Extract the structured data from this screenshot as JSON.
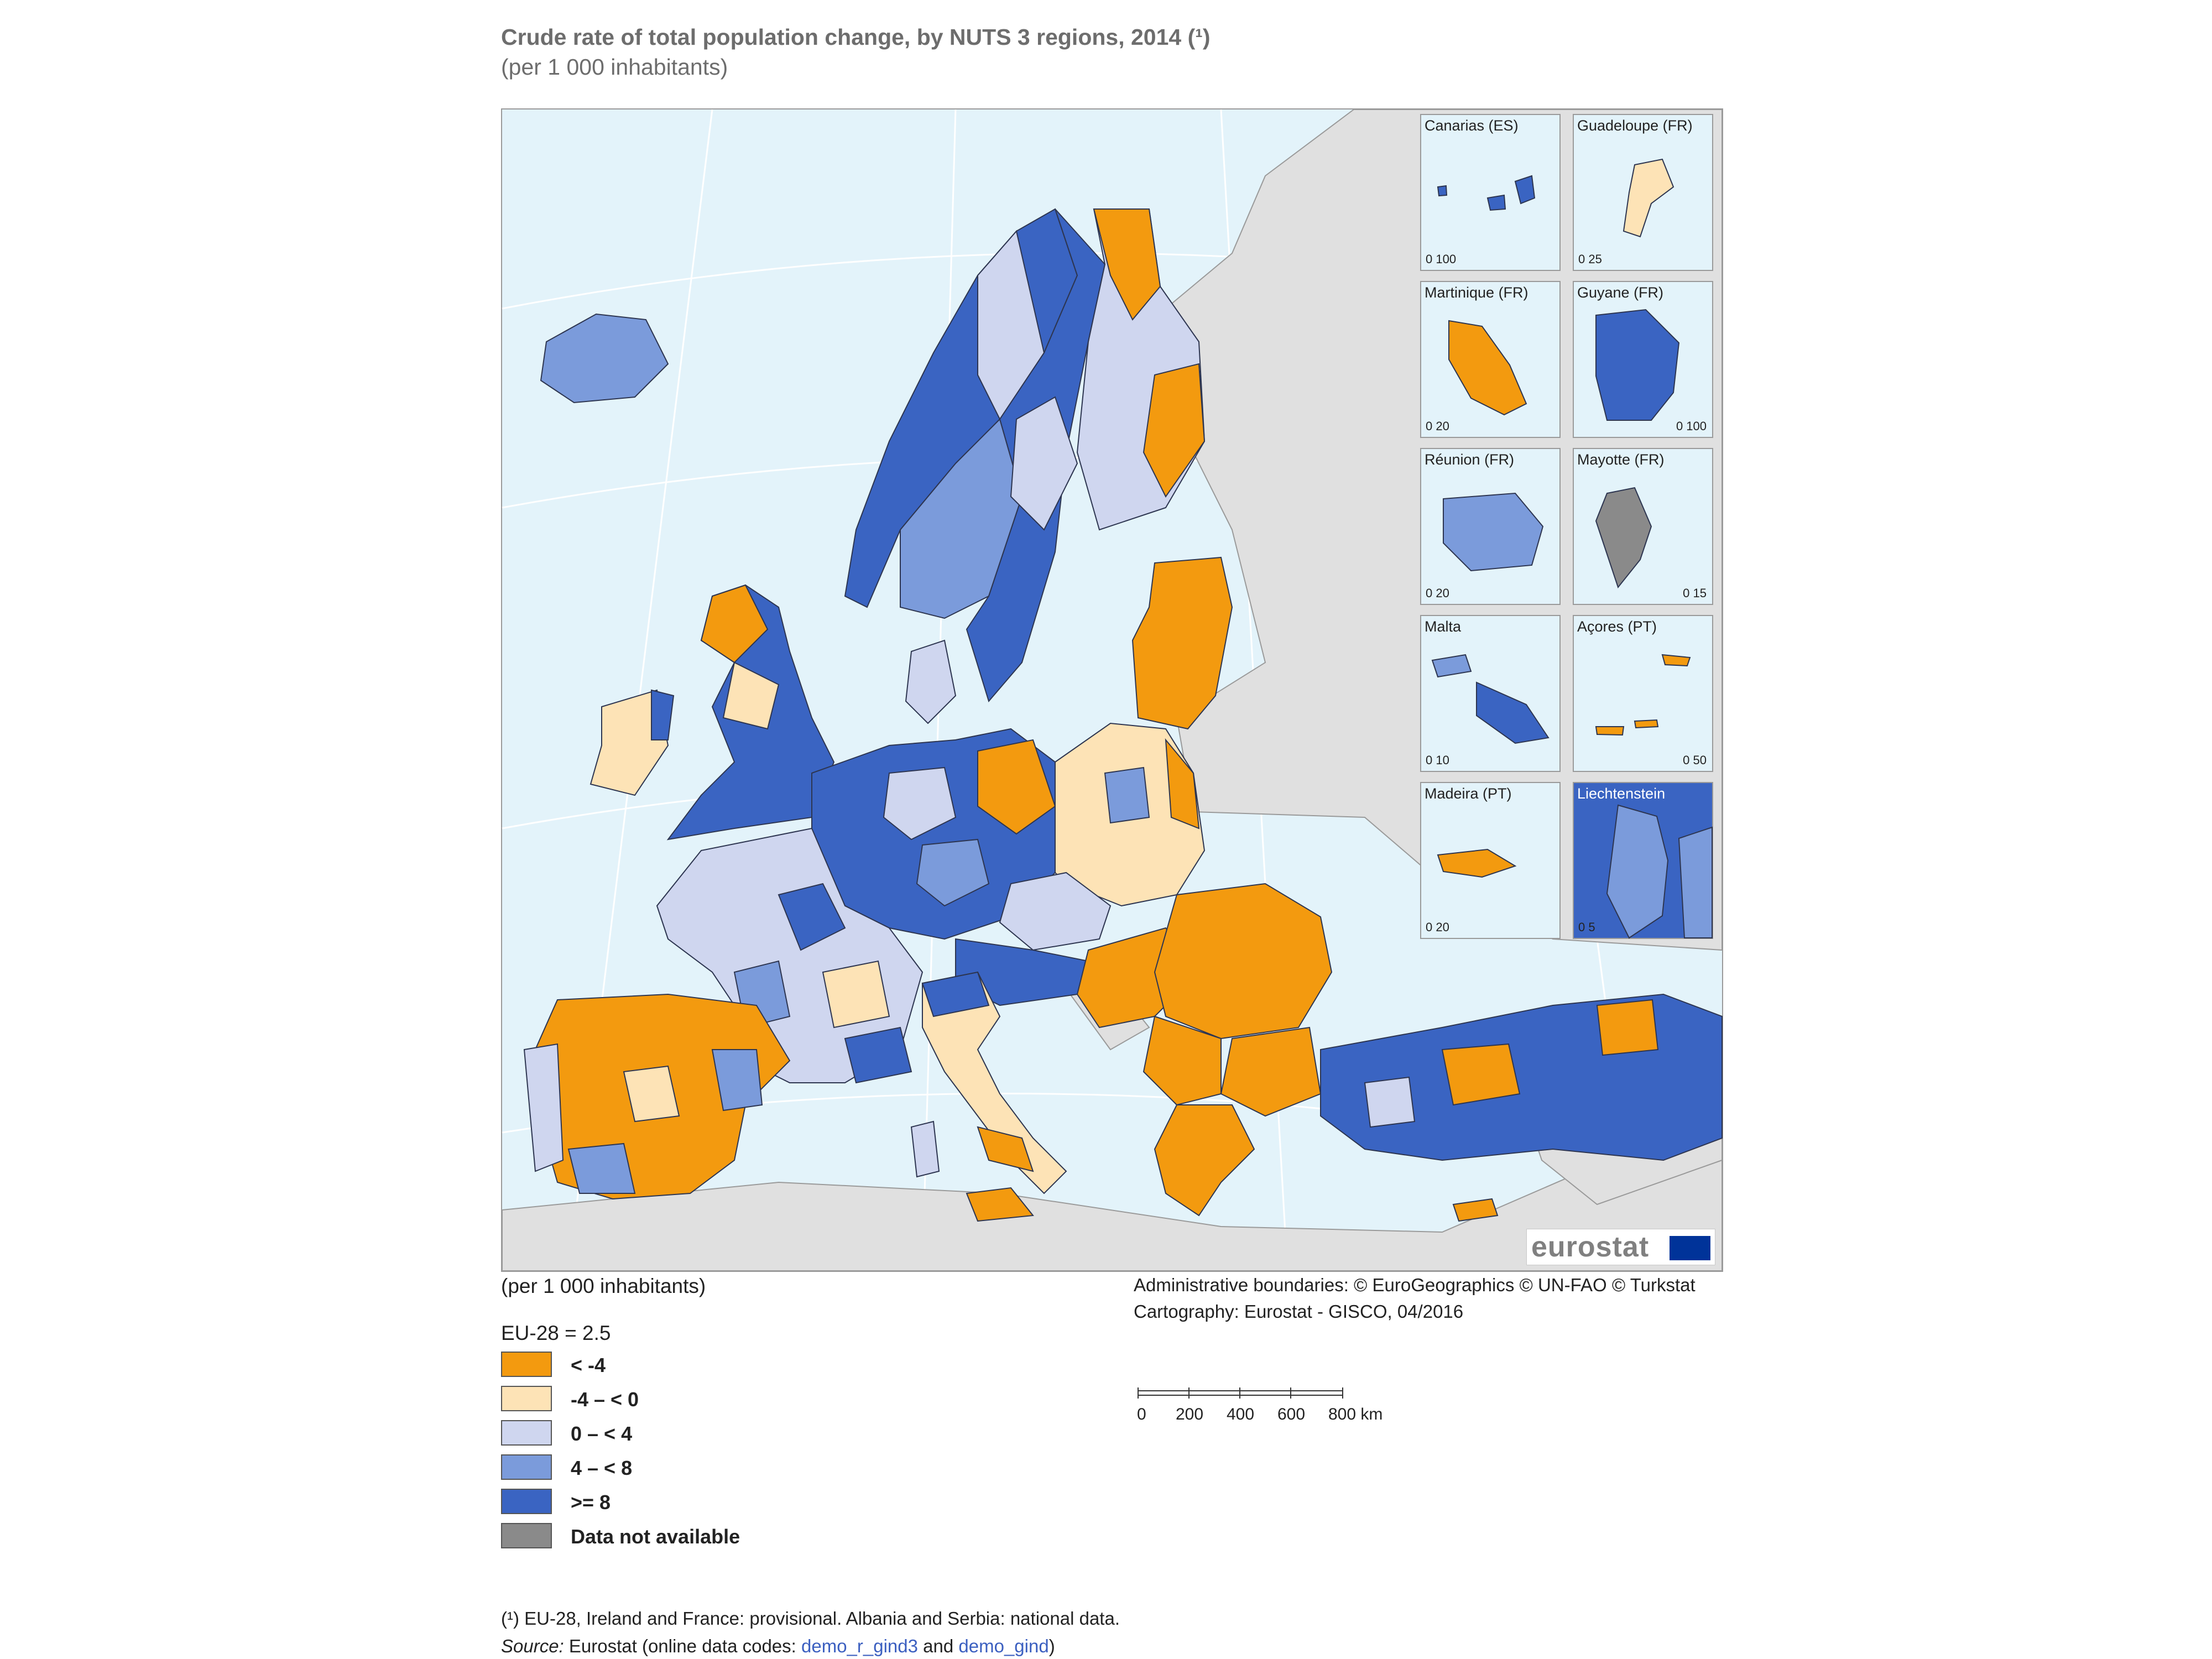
{
  "title": "Crude rate of total population change, by NUTS 3 regions, 2014 (¹)",
  "subtitle": "(per 1 000 inhabitants)",
  "colors": {
    "sea": "#e3f3fa",
    "non_eu": "#e0e0e0",
    "lt_minus4": "#f39a0f",
    "minus4_0": "#fde3b6",
    "zero_4": "#cfd6ef",
    "four_8": "#7b9bdb",
    "ge8": "#3a64c2",
    "na": "#8a8a8a",
    "border": "#2d3550"
  },
  "insets": [
    {
      "label": "Canarias (ES)",
      "scale": "0  100"
    },
    {
      "label": "Guadeloupe (FR)",
      "scale": "0   25"
    },
    {
      "label": "Martinique (FR)",
      "scale": "0   20"
    },
    {
      "label": "Guyane (FR)",
      "scale": "0  100"
    },
    {
      "label": "Réunion (FR)",
      "scale": "0   20"
    },
    {
      "label": "Mayotte (FR)",
      "scale": "0   15"
    },
    {
      "label": "Malta",
      "scale": "0   10"
    },
    {
      "label": "Açores (PT)",
      "scale": "0   50"
    },
    {
      "label": "Madeira (PT)",
      "scale": "0   20"
    },
    {
      "label": "Liechtenstein",
      "scale": "0   5"
    }
  ],
  "logo_text": "eurostat",
  "per_note": "(per 1 000 inhabitants)",
  "credits": {
    "line1": "Administrative boundaries: © EuroGeographics © UN-FAO © Turkstat",
    "line2": "Cartography: Eurostat - GISCO, 04/2016"
  },
  "eu_average": "EU-28 = 2.5",
  "legend": [
    {
      "label": "< -4",
      "color": "#f39a0f"
    },
    {
      "label": "-4 – < 0",
      "color": "#fde3b6"
    },
    {
      "label": "0 – < 4",
      "color": "#cfd6ef"
    },
    {
      "label": "4 – < 8",
      "color": "#7b9bdb"
    },
    {
      "label": ">= 8",
      "color": "#3a64c2"
    },
    {
      "label": "Data not available",
      "color": "#8a8a8a"
    }
  ],
  "scalebar": {
    "ticks": [
      "0",
      "200",
      "400",
      "600",
      "800 km"
    ]
  },
  "footnote": "(¹) EU-28, Ireland and France: provisional. Albania and Serbia: national data.",
  "source": {
    "prefix": "Source:",
    "text": " Eurostat (online data codes: ",
    "code1": "demo_r_gind3",
    "and": " and ",
    "code2": "demo_gind",
    "suffix": ")"
  }
}
